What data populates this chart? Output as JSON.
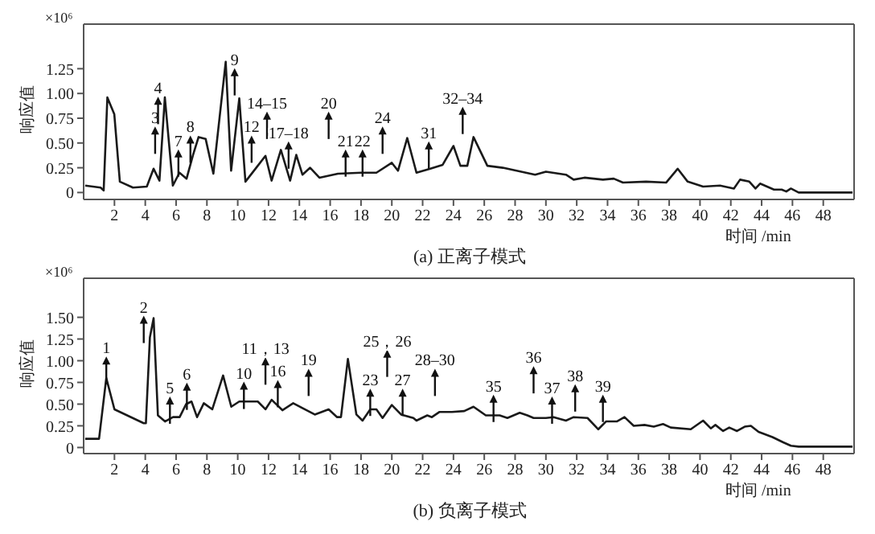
{
  "chart_data": [
    {
      "type": "line",
      "title": "(a) 正离子模式",
      "xlabel": "时间 /min",
      "ylabel": "响应值",
      "annotations": [
        "×10⁶",
        {
          "text": "3",
          "x": 4.64,
          "y": 0.65
        },
        {
          "text": "4",
          "x": 4.83,
          "y": 0.95
        },
        {
          "text": "7",
          "x": 6.15,
          "y": 0.42
        },
        {
          "text": "8",
          "x": 6.93,
          "y": 0.56
        },
        {
          "text": "9",
          "x": 9.8,
          "y": 1.24
        },
        {
          "text": "12",
          "x": 10.9,
          "y": 0.56
        },
        {
          "text": "14–15",
          "x": 11.9,
          "y": 0.8
        },
        {
          "text": "17–18",
          "x": 13.3,
          "y": 0.5
        },
        {
          "text": "20",
          "x": 15.9,
          "y": 0.8
        },
        {
          "text": "21",
          "x": 17.0,
          "y": 0.42
        },
        {
          "text": "22",
          "x": 18.1,
          "y": 0.42
        },
        {
          "text": "24",
          "x": 19.4,
          "y": 0.65
        },
        {
          "text": "31",
          "x": 22.4,
          "y": 0.5
        },
        {
          "text": "32–34",
          "x": 24.6,
          "y": 0.85
        }
      ],
      "x": [
        0.1,
        1.1,
        1.3,
        1.54,
        1.99,
        2.35,
        3.2,
        4.1,
        4.54,
        4.92,
        5.27,
        5.79,
        6.22,
        6.68,
        7.1,
        7.46,
        7.92,
        8.42,
        9.22,
        9.57,
        10.1,
        10.5,
        11.2,
        11.8,
        12.2,
        12.8,
        13.4,
        13.8,
        14.2,
        14.7,
        15.3,
        16.5,
        18.0,
        19.0,
        20.0,
        20.4,
        21.0,
        21.6,
        22.5,
        23.3,
        24.0,
        24.45,
        24.9,
        25.3,
        26.2,
        27.2,
        28.1,
        29.3,
        30.0,
        31.3,
        31.8,
        32.5,
        33.7,
        34.4,
        35.0,
        36.5,
        37.8,
        38.55,
        39.2,
        40.2,
        41.3,
        42.2,
        42.6,
        43.2,
        43.6,
        43.9,
        44.8,
        45.3,
        45.6,
        45.9,
        46.4,
        49.9
      ],
      "series": [
        {
          "color": "#1a1a1a",
          "values": [
            0.07,
            0.05,
            0.02,
            0.96,
            0.79,
            0.11,
            0.05,
            0.06,
            0.24,
            0.12,
            0.96,
            0.07,
            0.2,
            0.14,
            0.38,
            0.56,
            0.54,
            0.19,
            1.32,
            0.22,
            0.95,
            0.11,
            0.25,
            0.37,
            0.12,
            0.43,
            0.12,
            0.38,
            0.18,
            0.25,
            0.15,
            0.19,
            0.2,
            0.2,
            0.3,
            0.22,
            0.55,
            0.2,
            0.24,
            0.28,
            0.47,
            0.27,
            0.27,
            0.56,
            0.27,
            0.25,
            0.22,
            0.18,
            0.21,
            0.18,
            0.13,
            0.15,
            0.13,
            0.14,
            0.1,
            0.11,
            0.1,
            0.24,
            0.11,
            0.06,
            0.07,
            0.04,
            0.13,
            0.11,
            0.04,
            0.09,
            0.03,
            0.03,
            0.01,
            0.04,
            0,
            0
          ]
        }
      ],
      "xlim": [
        0,
        50
      ],
      "xticks": [
        2,
        4,
        6,
        8,
        10,
        12,
        14,
        16,
        18,
        20,
        22,
        24,
        26,
        28,
        30,
        32,
        34,
        36,
        38,
        40,
        42,
        44,
        46,
        48
      ],
      "ylim": [
        -0.07,
        1.7
      ],
      "yticks": [
        0,
        {
          "value": 0.25,
          "label": "0.25"
        },
        {
          "value": 0.5,
          "label": "0.50"
        },
        {
          "value": 0.75,
          "label": "0.75"
        },
        {
          "value": 1,
          "label": "1.00"
        },
        {
          "value": 1.25,
          "label": "1.25"
        }
      ],
      "marker": "none",
      "line_style": "solid"
    },
    {
      "type": "line",
      "title": "(b) 负离子模式",
      "xlabel": "时间 /min",
      "ylabel": "响应值",
      "annotations": [
        "×10⁶",
        {
          "text": "1",
          "x": 1.47,
          "y": 1.03
        },
        {
          "text": "2",
          "x": 3.9,
          "y": 1.5
        },
        {
          "text": "5",
          "x": 5.6,
          "y": 0.57
        },
        {
          "text": "6",
          "x": 6.7,
          "y": 0.73
        },
        {
          "text": "10",
          "x": 10.4,
          "y": 0.74
        },
        {
          "text": "11，13",
          "x": 11.8,
          "y": 1.02
        },
        {
          "text": "16",
          "x": 12.6,
          "y": 0.76
        },
        {
          "text": "19",
          "x": 14.6,
          "y": 0.89
        },
        {
          "text": "23",
          "x": 18.6,
          "y": 0.66
        },
        {
          "text": "25，26",
          "x": 19.7,
          "y": 1.11
        },
        {
          "text": "27",
          "x": 20.7,
          "y": 0.66
        },
        {
          "text": "28–30",
          "x": 22.8,
          "y": 0.89
        },
        {
          "text": "35",
          "x": 26.6,
          "y": 0.59
        },
        {
          "text": "36",
          "x": 29.2,
          "y": 0.92
        },
        {
          "text": "37",
          "x": 30.4,
          "y": 0.57
        },
        {
          "text": "38",
          "x": 31.9,
          "y": 0.71
        },
        {
          "text": "39",
          "x": 33.7,
          "y": 0.59
        }
      ],
      "x": [
        0.1,
        1.0,
        1.47,
        2.0,
        3.9,
        4.04,
        4.3,
        4.54,
        4.82,
        5.28,
        5.8,
        6.23,
        6.65,
        7.0,
        7.36,
        7.8,
        8.35,
        9.05,
        9.58,
        10.1,
        10.6,
        11.3,
        11.8,
        12.2,
        12.9,
        13.6,
        15.0,
        15.9,
        16.45,
        16.7,
        17.15,
        17.7,
        18.1,
        18.6,
        19.0,
        19.4,
        20.0,
        20.6,
        21.4,
        21.6,
        22.3,
        22.6,
        23.1,
        23.9,
        24.7,
        25.3,
        26.1,
        27.0,
        27.5,
        28.3,
        28.8,
        29.2,
        30.0,
        30.5,
        31.3,
        31.8,
        32.7,
        33.4,
        33.9,
        34.6,
        35.1,
        35.7,
        36.4,
        37.0,
        37.6,
        38.1,
        39.4,
        40.2,
        40.7,
        41.0,
        41.5,
        41.9,
        42.4,
        42.9,
        43.3,
        43.8,
        44.7,
        45.4,
        45.9,
        46.4,
        49.9
      ],
      "series": [
        {
          "color": "#1a1a1a",
          "values": [
            0.1,
            0.1,
            0.8,
            0.44,
            0.28,
            0.28,
            1.27,
            1.49,
            0.37,
            0.3,
            0.35,
            0.35,
            0.5,
            0.53,
            0.35,
            0.51,
            0.44,
            0.83,
            0.47,
            0.53,
            0.53,
            0.53,
            0.44,
            0.55,
            0.43,
            0.51,
            0.38,
            0.44,
            0.35,
            0.35,
            1.02,
            0.38,
            0.31,
            0.44,
            0.44,
            0.34,
            0.49,
            0.38,
            0.34,
            0.31,
            0.37,
            0.35,
            0.41,
            0.41,
            0.42,
            0.47,
            0.37,
            0.37,
            0.34,
            0.4,
            0.37,
            0.34,
            0.34,
            0.35,
            0.31,
            0.35,
            0.34,
            0.21,
            0.3,
            0.3,
            0.35,
            0.25,
            0.26,
            0.24,
            0.27,
            0.23,
            0.21,
            0.31,
            0.22,
            0.26,
            0.19,
            0.23,
            0.19,
            0.24,
            0.25,
            0.18,
            0.12,
            0.06,
            0.02,
            0.01,
            0.01
          ]
        }
      ],
      "xlim": [
        0,
        50
      ],
      "xticks": [
        2,
        4,
        6,
        8,
        10,
        12,
        14,
        16,
        18,
        20,
        22,
        24,
        26,
        28,
        30,
        32,
        34,
        36,
        38,
        40,
        42,
        44,
        46,
        48
      ],
      "ylim": [
        -0.07,
        1.95
      ],
      "yticks": [
        0,
        {
          "value": 0.25,
          "label": "0.25"
        },
        {
          "value": 0.5,
          "label": "0.50"
        },
        {
          "value": 0.75,
          "label": "0.75"
        },
        {
          "value": 1,
          "label": "1.00"
        },
        {
          "value": 1.25,
          "label": "1.25"
        },
        {
          "value": 1.5,
          "label": "1.50"
        }
      ],
      "marker": "none",
      "line_style": "solid"
    }
  ]
}
